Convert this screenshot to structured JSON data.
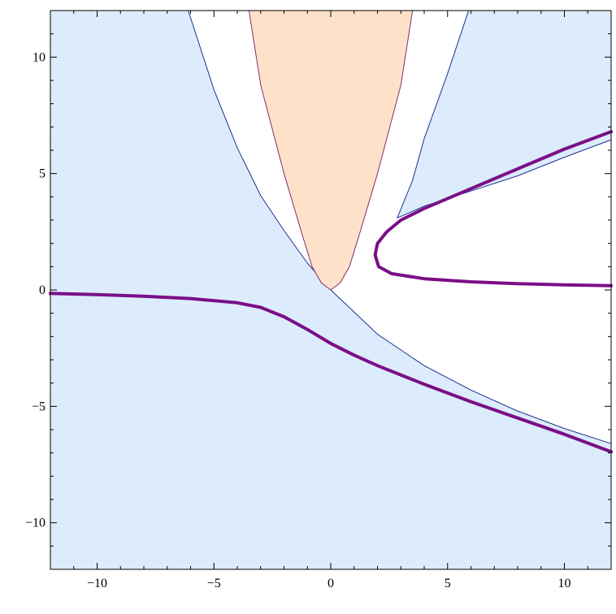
{
  "chart_data": {
    "type": "region-contour",
    "xlim": [
      -12,
      12
    ],
    "ylim": [
      -12,
      12
    ],
    "x_ticks": [
      -10,
      -5,
      0,
      5,
      10
    ],
    "y_ticks": [
      -10,
      -5,
      0,
      5,
      10
    ],
    "x_tick_labels": [
      "−10",
      "−5",
      "0",
      "5",
      "10"
    ],
    "y_tick_labels": [
      "−10",
      "−5",
      "0",
      "5",
      "10"
    ],
    "grid": false,
    "colors": {
      "region_fill": "#dcecfc",
      "region_stroke": "#1f2f8f",
      "cup_fill": "#fde1c9",
      "cup_stroke": "#8a2b6e",
      "curve": "#7b0f87"
    },
    "regions": [
      {
        "fill": "blue",
        "points": [
          [
            -12,
            12
          ],
          [
            -6.1,
            12
          ],
          [
            -5,
            8.6
          ],
          [
            -4,
            6.1
          ],
          [
            -3,
            4.05
          ],
          [
            -2,
            2.55
          ],
          [
            -1,
            1.15
          ],
          [
            0,
            0
          ],
          [
            1,
            -0.95
          ],
          [
            2,
            -1.9
          ],
          [
            4,
            -3.25
          ],
          [
            6,
            -4.3
          ],
          [
            8,
            -5.2
          ],
          [
            10,
            -5.95
          ],
          [
            12,
            -6.6
          ],
          [
            12,
            -12
          ],
          [
            -12,
            -12
          ]
        ]
      },
      {
        "fill": "blue",
        "points": [
          [
            2.85,
            3.1
          ],
          [
            3.5,
            4.7
          ],
          [
            4,
            6.5
          ],
          [
            5,
            9.3
          ],
          [
            5.9,
            12
          ],
          [
            12,
            12
          ],
          [
            12,
            6.45
          ],
          [
            10,
            5.7
          ],
          [
            8,
            4.9
          ],
          [
            6,
            4.25
          ],
          [
            4,
            3.6
          ],
          [
            3.1,
            3.2
          ]
        ]
      },
      {
        "fill": "orange",
        "points": [
          [
            -3.5,
            12
          ],
          [
            3.5,
            12
          ],
          [
            3,
            8.8
          ],
          [
            2,
            5.0
          ],
          [
            1.2,
            2.3
          ],
          [
            0.8,
            1.0
          ],
          [
            0.4,
            0.3
          ],
          [
            0,
            0
          ],
          [
            -0.4,
            0.3
          ],
          [
            -0.8,
            1.0
          ],
          [
            -1.2,
            2.3
          ],
          [
            -2,
            5.0
          ],
          [
            -3,
            8.8
          ]
        ]
      }
    ],
    "curves": [
      {
        "points": [
          [
            -12,
            -0.15
          ],
          [
            -10,
            -0.2
          ],
          [
            -8,
            -0.27
          ],
          [
            -6,
            -0.37
          ],
          [
            -4,
            -0.55
          ],
          [
            -3,
            -0.75
          ],
          [
            -2,
            -1.15
          ],
          [
            -1,
            -1.7
          ],
          [
            0,
            -2.3
          ],
          [
            1,
            -2.8
          ],
          [
            2,
            -3.25
          ],
          [
            4,
            -4.05
          ],
          [
            6,
            -4.8
          ],
          [
            8,
            -5.5
          ],
          [
            10,
            -6.2
          ],
          [
            12,
            -6.95
          ]
        ]
      },
      {
        "points": [
          [
            12,
            6.8
          ],
          [
            10,
            6.05
          ],
          [
            8,
            5.2
          ],
          [
            6,
            4.35
          ],
          [
            4,
            3.5
          ],
          [
            3,
            3.0
          ],
          [
            2.4,
            2.5
          ],
          [
            2,
            2.0
          ],
          [
            1.9,
            1.5
          ],
          [
            2.05,
            1.0
          ],
          [
            2.6,
            0.7
          ],
          [
            4,
            0.48
          ],
          [
            6,
            0.35
          ],
          [
            8,
            0.27
          ],
          [
            10,
            0.22
          ],
          [
            12,
            0.18
          ]
        ]
      }
    ]
  }
}
